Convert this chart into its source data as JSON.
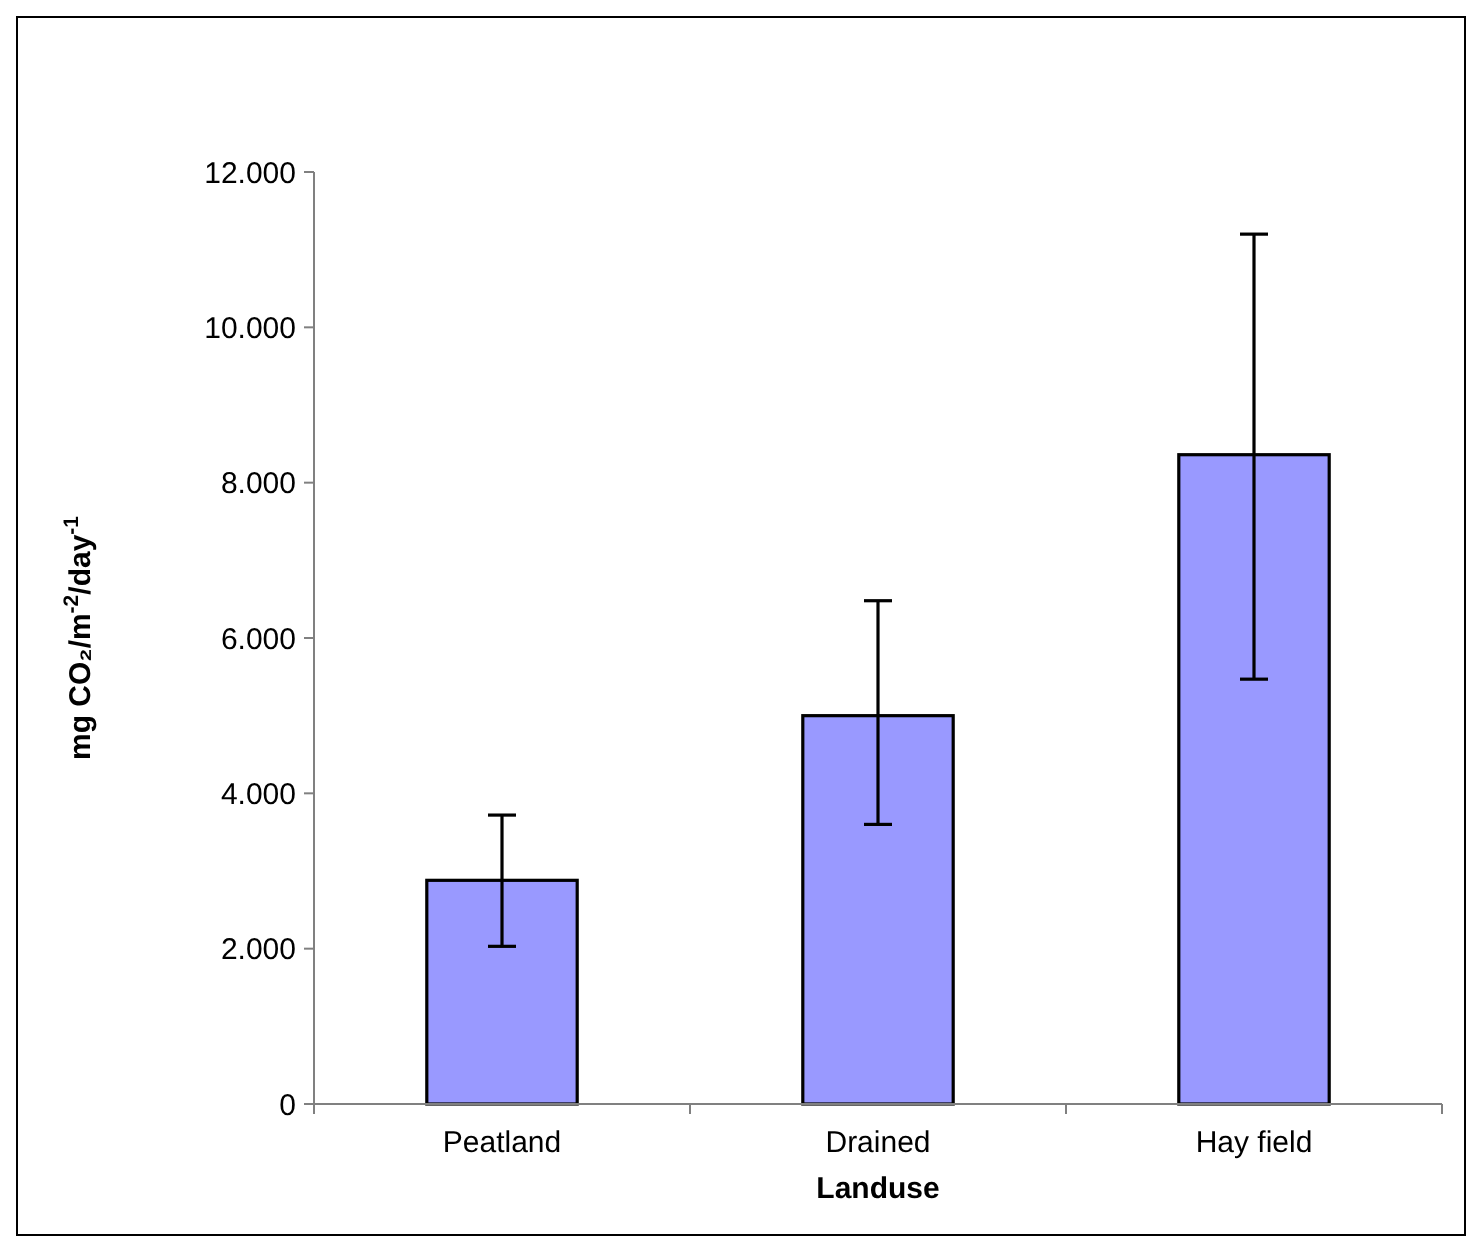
{
  "chart_data": {
    "type": "bar",
    "xlabel": "Landuse",
    "ylabel": "mg CO₂/m$^{-2}$/day$^{-1}$",
    "categories": [
      "Peatland",
      "Drained",
      "Hay field"
    ],
    "values": [
      2880,
      5000,
      8360
    ],
    "errors": [
      [
        2030,
        3720
      ],
      [
        3600,
        6480
      ],
      [
        5470,
        11200
      ]
    ],
    "color": "#9999ff",
    "ylim": [
      0,
      12000
    ],
    "yticks": [
      0,
      {
        "value": 2000,
        "label": "2.000"
      },
      {
        "value": 4000,
        "label": "4.000"
      },
      {
        "value": 6000,
        "label": "6.000"
      },
      {
        "value": 8000,
        "label": "8.000"
      },
      {
        "value": 10000,
        "label": "10.000"
      },
      {
        "value": 12000,
        "label": "12.000"
      }
    ],
    "grid": false
  }
}
